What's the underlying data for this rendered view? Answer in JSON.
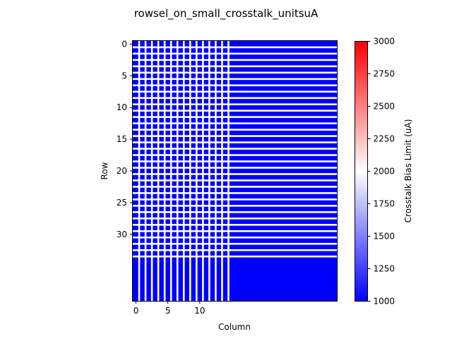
{
  "chart_data": {
    "type": "heatmap",
    "title": "rowsel_on_small_crosstalk_unitsuA",
    "xlabel": "Column",
    "ylabel": "Row",
    "x_ticks": [
      0,
      5,
      10
    ],
    "y_ticks": [
      0,
      5,
      10,
      15,
      20,
      25,
      30
    ],
    "x_range": [
      -0.5,
      31.5
    ],
    "y_range": [
      40.5,
      -0.5
    ],
    "pattern": {
      "background_value": 1000,
      "line_value": 2000,
      "row_lines_through_row": 33,
      "column_lines_through_column": 14,
      "line_gap_columns": 1,
      "line_gap_rows": 1
    },
    "colorbar": {
      "label": "Crosstalk Bias Limit (uA)",
      "min": 1000,
      "max": 3000,
      "ticks": [
        1000,
        1250,
        1500,
        1750,
        2000,
        2250,
        2500,
        2750,
        3000
      ],
      "colormap": "bwr",
      "colors": [
        "#0000ff",
        "#ffffff",
        "#ff0000"
      ]
    }
  }
}
